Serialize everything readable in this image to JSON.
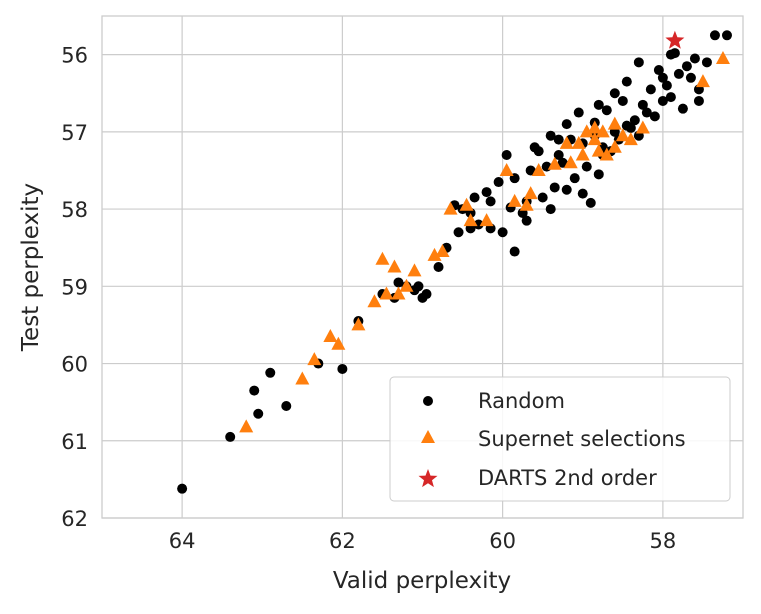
{
  "chart_data": {
    "type": "scatter",
    "xlabel": "Valid perplexity",
    "ylabel": "Test perplexity",
    "xlim": [
      65,
      57
    ],
    "ylim": [
      62,
      55.5
    ],
    "x_inverted": true,
    "y_inverted": true,
    "x_ticks": [
      64,
      62,
      60,
      58
    ],
    "y_ticks": [
      56,
      57,
      58,
      59,
      60,
      61,
      62
    ],
    "grid": true,
    "legend_position": "bottom-right",
    "series": [
      {
        "name": "Random",
        "marker": "circle",
        "color": "#000000",
        "points": [
          [
            64.0,
            61.62
          ],
          [
            63.4,
            60.95
          ],
          [
            63.05,
            60.65
          ],
          [
            63.1,
            60.35
          ],
          [
            62.9,
            60.12
          ],
          [
            62.7,
            60.55
          ],
          [
            62.3,
            60.0
          ],
          [
            62.0,
            60.07
          ],
          [
            61.8,
            59.45
          ],
          [
            61.5,
            59.1
          ],
          [
            61.3,
            58.95
          ],
          [
            61.2,
            59.0
          ],
          [
            61.1,
            59.05
          ],
          [
            61.0,
            59.15
          ],
          [
            60.95,
            59.1
          ],
          [
            60.8,
            58.75
          ],
          [
            60.7,
            58.5
          ],
          [
            60.55,
            58.3
          ],
          [
            60.4,
            58.25
          ],
          [
            60.3,
            58.2
          ],
          [
            60.15,
            58.25
          ],
          [
            60.0,
            58.3
          ],
          [
            59.85,
            58.55
          ],
          [
            59.7,
            58.15
          ],
          [
            60.5,
            58.0
          ],
          [
            60.35,
            57.85
          ],
          [
            59.9,
            57.98
          ],
          [
            59.7,
            57.9
          ],
          [
            59.5,
            57.85
          ],
          [
            59.35,
            57.72
          ],
          [
            59.2,
            57.75
          ],
          [
            59.0,
            57.8
          ],
          [
            58.9,
            57.92
          ],
          [
            59.1,
            57.6
          ],
          [
            58.8,
            57.55
          ],
          [
            58.75,
            57.3
          ],
          [
            59.0,
            57.15
          ],
          [
            58.85,
            57.05
          ],
          [
            58.6,
            57.0
          ],
          [
            58.45,
            56.92
          ],
          [
            58.35,
            56.85
          ],
          [
            58.7,
            56.72
          ],
          [
            58.5,
            56.6
          ],
          [
            58.25,
            56.65
          ],
          [
            58.0,
            56.6
          ],
          [
            57.9,
            56.55
          ],
          [
            58.15,
            56.45
          ],
          [
            58.0,
            56.3
          ],
          [
            57.8,
            56.25
          ],
          [
            57.7,
            56.15
          ],
          [
            57.6,
            56.05
          ],
          [
            57.85,
            55.98
          ],
          [
            58.3,
            56.1
          ],
          [
            58.05,
            56.2
          ],
          [
            58.45,
            56.35
          ],
          [
            58.6,
            56.5
          ],
          [
            58.8,
            56.65
          ],
          [
            59.05,
            56.75
          ],
          [
            59.2,
            56.9
          ],
          [
            59.3,
            57.1
          ],
          [
            59.55,
            57.25
          ],
          [
            59.45,
            57.45
          ],
          [
            59.65,
            57.5
          ],
          [
            59.85,
            57.6
          ],
          [
            60.05,
            57.65
          ],
          [
            60.2,
            57.78
          ],
          [
            60.4,
            58.05
          ],
          [
            60.6,
            57.95
          ],
          [
            59.95,
            57.3
          ],
          [
            59.6,
            57.2
          ],
          [
            59.4,
            57.05
          ],
          [
            59.25,
            57.4
          ],
          [
            58.95,
            57.45
          ],
          [
            58.65,
            57.25
          ],
          [
            58.55,
            57.1
          ],
          [
            58.4,
            56.95
          ],
          [
            58.2,
            56.75
          ],
          [
            58.1,
            56.8
          ],
          [
            57.75,
            56.7
          ],
          [
            57.55,
            56.6
          ],
          [
            57.95,
            56.4
          ],
          [
            57.65,
            56.3
          ],
          [
            57.55,
            56.45
          ],
          [
            57.35,
            55.75
          ],
          [
            57.2,
            55.75
          ],
          [
            57.45,
            56.1
          ],
          [
            57.9,
            56.0
          ],
          [
            59.4,
            58.0
          ],
          [
            59.75,
            58.05
          ],
          [
            59.3,
            57.3
          ],
          [
            59.15,
            57.1
          ],
          [
            58.75,
            57.2
          ],
          [
            58.3,
            57.05
          ],
          [
            58.85,
            56.88
          ],
          [
            60.15,
            57.9
          ],
          [
            61.35,
            59.15
          ],
          [
            61.05,
            59.0
          ]
        ]
      },
      {
        "name": "Supernet selections",
        "marker": "triangle",
        "color": "#ff7f0e",
        "points": [
          [
            63.2,
            60.82
          ],
          [
            62.5,
            60.2
          ],
          [
            62.35,
            59.95
          ],
          [
            62.15,
            59.65
          ],
          [
            62.05,
            59.75
          ],
          [
            61.8,
            59.5
          ],
          [
            61.6,
            59.2
          ],
          [
            61.45,
            59.1
          ],
          [
            61.3,
            59.1
          ],
          [
            61.2,
            59.0
          ],
          [
            61.35,
            58.75
          ],
          [
            61.1,
            58.8
          ],
          [
            61.5,
            58.65
          ],
          [
            60.85,
            58.6
          ],
          [
            60.75,
            58.55
          ],
          [
            60.65,
            58.0
          ],
          [
            60.45,
            57.95
          ],
          [
            60.4,
            58.15
          ],
          [
            60.2,
            58.15
          ],
          [
            59.85,
            57.9
          ],
          [
            59.65,
            57.8
          ],
          [
            59.55,
            57.5
          ],
          [
            59.35,
            57.42
          ],
          [
            59.15,
            57.4
          ],
          [
            59.05,
            57.15
          ],
          [
            58.95,
            57.0
          ],
          [
            58.85,
            57.1
          ],
          [
            58.7,
            57.3
          ],
          [
            58.75,
            57.0
          ],
          [
            58.6,
            56.9
          ],
          [
            58.5,
            57.05
          ],
          [
            58.25,
            56.95
          ],
          [
            58.4,
            57.1
          ],
          [
            58.6,
            57.2
          ],
          [
            58.8,
            57.25
          ],
          [
            59.2,
            57.15
          ],
          [
            59.0,
            57.3
          ],
          [
            57.5,
            56.35
          ],
          [
            57.25,
            56.05
          ],
          [
            59.95,
            57.5
          ],
          [
            59.7,
            57.95
          ],
          [
            58.85,
            56.95
          ]
        ]
      },
      {
        "name": "DARTS 2nd order",
        "marker": "star",
        "color": "#d62728",
        "points": [
          [
            57.85,
            55.82
          ]
        ]
      }
    ]
  }
}
